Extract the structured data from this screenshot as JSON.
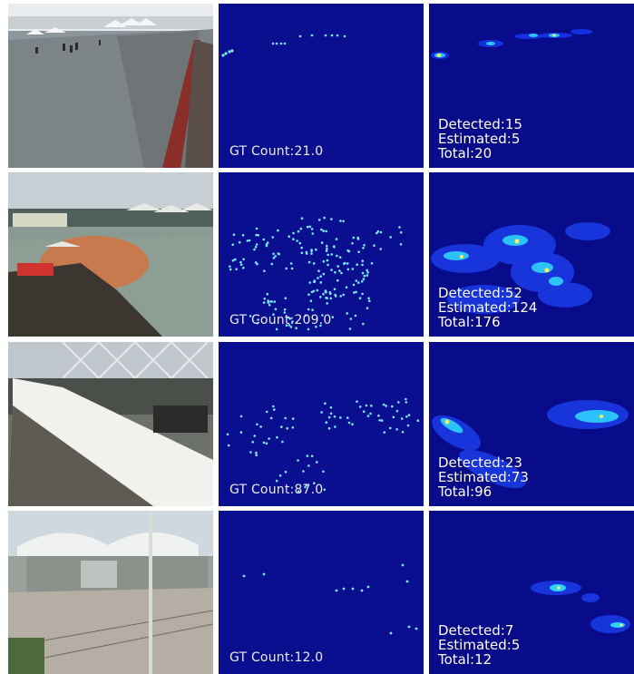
{
  "rows": [
    {
      "gt_count": "GT Count:21.0",
      "detected": "Detected:15",
      "estimated": "Estimated:5",
      "total": "Total:20"
    },
    {
      "gt_count": "GT Count:209.0",
      "detected": "Detected:52",
      "estimated": "Estimated:124",
      "total": "Total:176"
    },
    {
      "gt_count": "GT Count:87.0",
      "detected": "Detected:23",
      "estimated": "Estimated:73",
      "total": "Total:96"
    },
    {
      "gt_count": "GT Count:12.0",
      "detected": "Detected:7",
      "estimated": "Estimated:5",
      "total": "Total:12"
    }
  ],
  "colors": {
    "background": "#ffffff",
    "density_blue": "#0a0f8f",
    "heatmap_blue": "#080b8a",
    "dot_cyan": "#7ee8ff",
    "hot_yellow": "#fff05a"
  }
}
